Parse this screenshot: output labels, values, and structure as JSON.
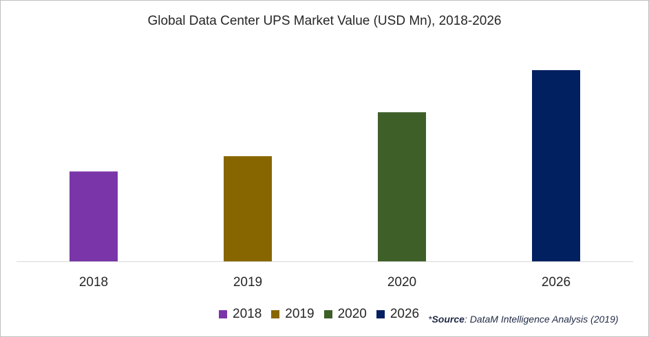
{
  "chart_data": {
    "type": "bar",
    "title": "Global Data Center UPS Market Value (USD Mn), 2018-2026",
    "categories": [
      "2018",
      "2019",
      "2020",
      "2026"
    ],
    "values": [
      47,
      55,
      78,
      100
    ],
    "colors": [
      "#7a35a8",
      "#876600",
      "#3f5f29",
      "#002060"
    ],
    "xlabel": "",
    "ylabel": "",
    "ylim": [
      0,
      100
    ],
    "grid": false,
    "legend": {
      "position": "bottom",
      "entries": [
        "2018",
        "2019",
        "2020",
        "2026"
      ]
    }
  },
  "source": {
    "prefix": "*",
    "label": "Source",
    "text": ": DataM Intelligence Analysis (2019)"
  }
}
